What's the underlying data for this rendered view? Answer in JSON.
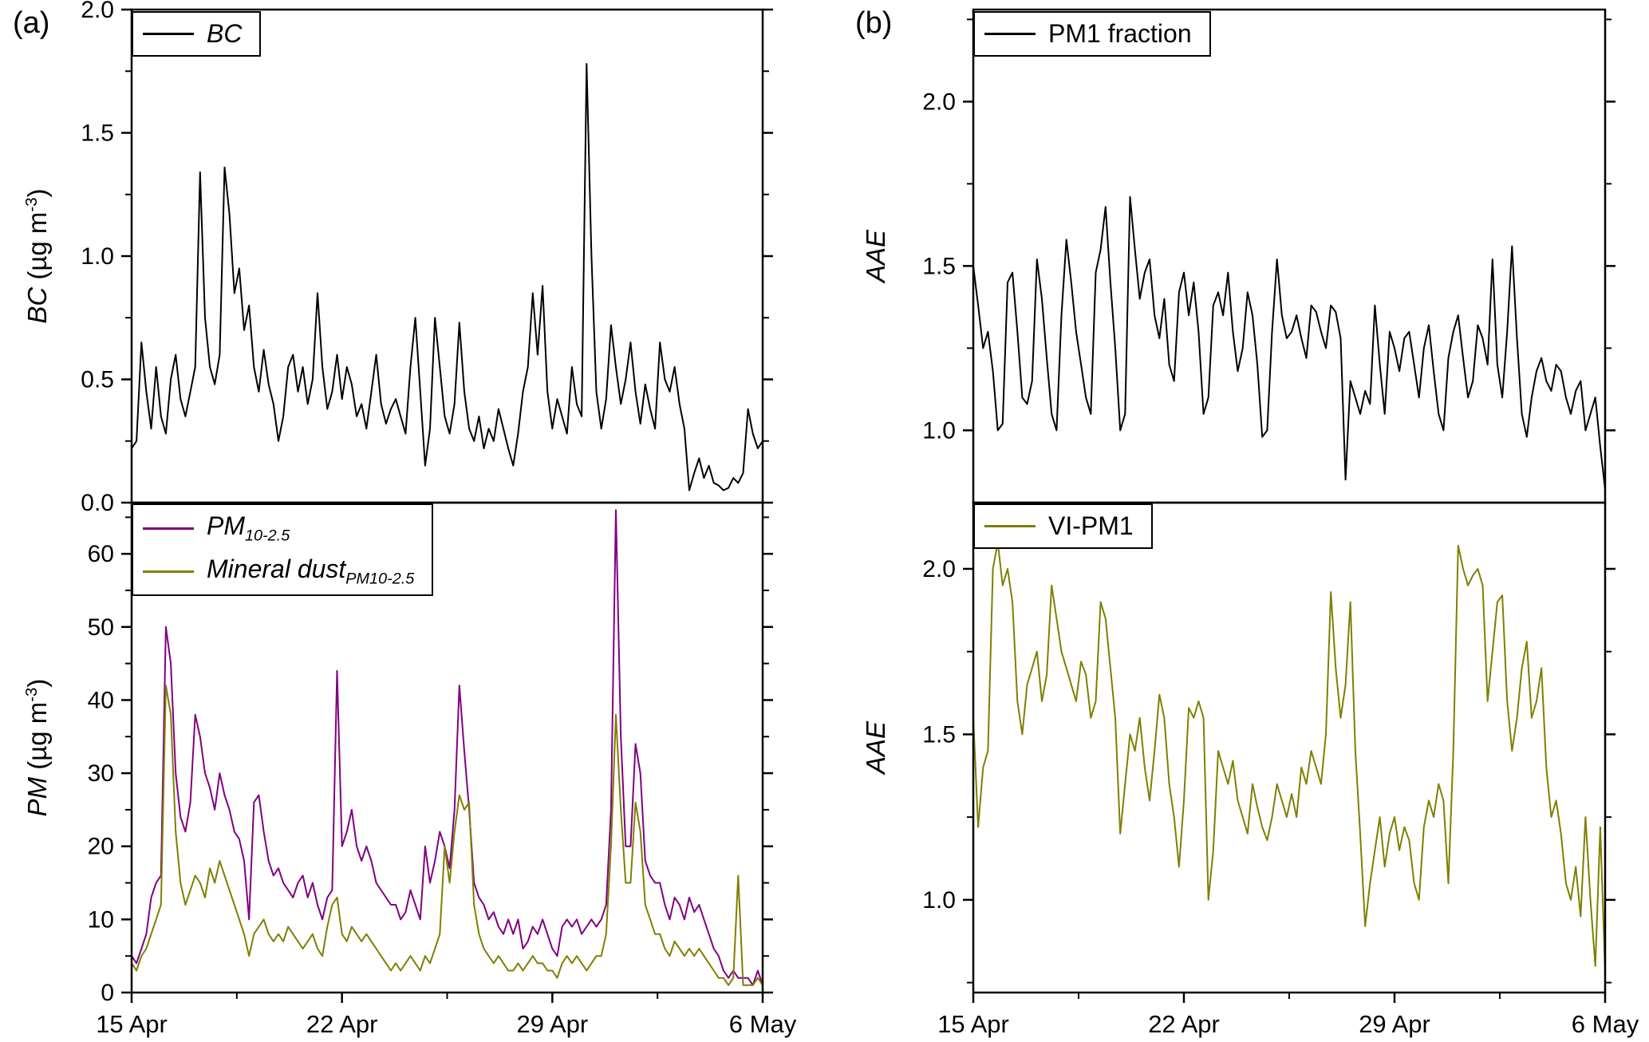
{
  "panel_labels": {
    "a": "(a)",
    "b": "(b)"
  },
  "colors": {
    "black": "#000000",
    "purple": "#800080",
    "olive": "#7f7f00"
  },
  "axis_labels": {
    "a_top": {
      "var": "BC",
      "unit_pre": " (µg m",
      "unit_sup": "-3",
      "unit_post": ")"
    },
    "a_bottom": {
      "var": "PM",
      "unit_pre": " (µg m",
      "unit_sup": "-3",
      "unit_post": ")"
    },
    "b_top": {
      "var": "AAE"
    },
    "b_bottom": {
      "var": "AAE"
    }
  },
  "legends": {
    "a_top": {
      "label": "BC"
    },
    "a_bottom": {
      "rows": [
        {
          "base": "PM",
          "sub": "10-2.5"
        },
        {
          "base": "Mineral dust",
          "sub": "PM10-2.5"
        }
      ]
    },
    "b_top": {
      "label": "PM1 fraction"
    },
    "b_bottom": {
      "label": "VI-PM1"
    }
  },
  "x_axis": {
    "range": [
      0,
      21
    ],
    "ticks": [
      0,
      7,
      14,
      21
    ],
    "tick_labels": [
      "15 Apr",
      "22 Apr",
      "29 Apr",
      "6 May"
    ],
    "minor_ticks": [
      3.5,
      10.5,
      17.5
    ]
  },
  "chart_data": [
    {
      "id": "a-top",
      "type": "line",
      "ylabel": "BC (ug m-3)",
      "ylim": [
        0,
        2.0
      ],
      "yticks": [
        0,
        0.5,
        1.0,
        1.5,
        2.0
      ],
      "ytick_labels": [
        "0.0",
        "0.5",
        "1.0",
        "1.5",
        "2.0"
      ],
      "yminor": [
        0.25,
        0.75,
        1.25,
        1.75
      ],
      "series": [
        {
          "name": "BC",
          "color": "#000000",
          "values": [
            0.22,
            0.25,
            0.65,
            0.45,
            0.3,
            0.55,
            0.35,
            0.28,
            0.5,
            0.6,
            0.42,
            0.35,
            0.45,
            0.55,
            1.34,
            0.75,
            0.55,
            0.48,
            0.6,
            1.36,
            1.17,
            0.85,
            0.95,
            0.7,
            0.8,
            0.55,
            0.45,
            0.62,
            0.48,
            0.4,
            0.25,
            0.35,
            0.55,
            0.6,
            0.45,
            0.55,
            0.4,
            0.5,
            0.85,
            0.55,
            0.38,
            0.45,
            0.6,
            0.42,
            0.55,
            0.48,
            0.35,
            0.4,
            0.3,
            0.45,
            0.6,
            0.4,
            0.32,
            0.38,
            0.42,
            0.35,
            0.28,
            0.55,
            0.75,
            0.45,
            0.15,
            0.3,
            0.75,
            0.55,
            0.35,
            0.28,
            0.4,
            0.73,
            0.45,
            0.3,
            0.25,
            0.35,
            0.22,
            0.3,
            0.25,
            0.38,
            0.3,
            0.22,
            0.15,
            0.28,
            0.45,
            0.55,
            0.85,
            0.6,
            0.88,
            0.45,
            0.3,
            0.42,
            0.35,
            0.28,
            0.55,
            0.4,
            0.35,
            1.78,
            1.0,
            0.45,
            0.3,
            0.42,
            0.72,
            0.55,
            0.4,
            0.5,
            0.65,
            0.45,
            0.32,
            0.48,
            0.38,
            0.3,
            0.65,
            0.5,
            0.45,
            0.55,
            0.4,
            0.3,
            0.05,
            0.12,
            0.18,
            0.1,
            0.15,
            0.08,
            0.07,
            0.05,
            0.06,
            0.1,
            0.08,
            0.12,
            0.38,
            0.28,
            0.22,
            0.25
          ]
        }
      ]
    },
    {
      "id": "a-bottom",
      "type": "line",
      "ylabel": "PM (ug m-3)",
      "ylim": [
        0,
        67
      ],
      "yticks": [
        0,
        10,
        20,
        30,
        40,
        50,
        60
      ],
      "ytick_labels": [
        "0",
        "10",
        "20",
        "30",
        "40",
        "50",
        "60"
      ],
      "yminor": [
        5,
        15,
        25,
        35,
        45,
        55,
        65
      ],
      "series": [
        {
          "name": "PM 10-2.5",
          "color": "#800080",
          "values": [
            5,
            4,
            6,
            8,
            13,
            15,
            16,
            50,
            45,
            30,
            24,
            22,
            26,
            38,
            35,
            30,
            28,
            25,
            30,
            27,
            25,
            22,
            21,
            18,
            10,
            26,
            27,
            22,
            18,
            16,
            17,
            15,
            14,
            13,
            15,
            16,
            13,
            15,
            12,
            10,
            13,
            14,
            44,
            20,
            22,
            25,
            20,
            18,
            20,
            18,
            15,
            14,
            13,
            12,
            12,
            10,
            11,
            14,
            12,
            10,
            20,
            15,
            18,
            22,
            20,
            17,
            25,
            42,
            33,
            25,
            15,
            13,
            12,
            10,
            11,
            9,
            8,
            10,
            8,
            10,
            6,
            7,
            9,
            8,
            10,
            8,
            6,
            5,
            9,
            10,
            9,
            10,
            8,
            9,
            10,
            9,
            10,
            12,
            25,
            66,
            35,
            20,
            20,
            34,
            30,
            18,
            16,
            15,
            15,
            12,
            10,
            13,
            12,
            10,
            13,
            11,
            12,
            10,
            8,
            6,
            5,
            3,
            2,
            3,
            2,
            2,
            2,
            1,
            3,
            1
          ]
        },
        {
          "name": "Mineral dust PM10-2.5",
          "color": "#7f7f00",
          "values": [
            4,
            3,
            5,
            6,
            8,
            10,
            12,
            42,
            38,
            22,
            15,
            12,
            14,
            16,
            15,
            13,
            17,
            15,
            18,
            16,
            14,
            12,
            10,
            8,
            5,
            8,
            9,
            10,
            8,
            7,
            8,
            7,
            9,
            8,
            7,
            6,
            7,
            8,
            6,
            5,
            9,
            12,
            13,
            8,
            7,
            9,
            8,
            7,
            8,
            7,
            6,
            5,
            4,
            3,
            4,
            3,
            4,
            5,
            4,
            3,
            5,
            4,
            6,
            8,
            20,
            15,
            22,
            27,
            25,
            26,
            12,
            8,
            6,
            5,
            4,
            5,
            4,
            3,
            3,
            4,
            3,
            4,
            5,
            4,
            4,
            3,
            3,
            2,
            4,
            5,
            4,
            5,
            4,
            3,
            4,
            5,
            5,
            8,
            20,
            38,
            25,
            15,
            15,
            26,
            22,
            12,
            10,
            8,
            8,
            6,
            5,
            7,
            6,
            5,
            6,
            5,
            6,
            5,
            4,
            3,
            2,
            2,
            1,
            2,
            16,
            1,
            1,
            1,
            2,
            1
          ]
        }
      ]
    },
    {
      "id": "b-top",
      "type": "line",
      "ylabel": "AAE",
      "ylim": [
        0.78,
        2.28
      ],
      "yticks": [
        1.0,
        1.5,
        2.0
      ],
      "ytick_labels": [
        "1.0",
        "1.5",
        "2.0"
      ],
      "yminor": [
        1.25,
        1.75,
        2.25
      ],
      "series": [
        {
          "name": "PM1 fraction",
          "color": "#000000",
          "values": [
            1.5,
            1.38,
            1.25,
            1.3,
            1.18,
            1.0,
            1.02,
            1.45,
            1.48,
            1.3,
            1.1,
            1.08,
            1.15,
            1.52,
            1.4,
            1.22,
            1.05,
            1.0,
            1.35,
            1.58,
            1.45,
            1.3,
            1.2,
            1.1,
            1.05,
            1.48,
            1.55,
            1.68,
            1.45,
            1.25,
            1.0,
            1.05,
            1.71,
            1.55,
            1.4,
            1.48,
            1.52,
            1.35,
            1.28,
            1.4,
            1.2,
            1.15,
            1.42,
            1.48,
            1.35,
            1.45,
            1.3,
            1.05,
            1.1,
            1.38,
            1.42,
            1.35,
            1.48,
            1.3,
            1.18,
            1.25,
            1.42,
            1.35,
            1.2,
            0.98,
            1.0,
            1.3,
            1.52,
            1.35,
            1.28,
            1.3,
            1.35,
            1.28,
            1.22,
            1.38,
            1.36,
            1.3,
            1.25,
            1.38,
            1.36,
            1.28,
            0.85,
            1.15,
            1.1,
            1.05,
            1.12,
            1.08,
            1.38,
            1.2,
            1.05,
            1.3,
            1.25,
            1.18,
            1.28,
            1.3,
            1.2,
            1.1,
            1.25,
            1.32,
            1.18,
            1.05,
            1.0,
            1.22,
            1.3,
            1.35,
            1.22,
            1.1,
            1.15,
            1.32,
            1.28,
            1.2,
            1.52,
            1.2,
            1.1,
            1.3,
            1.56,
            1.28,
            1.05,
            0.98,
            1.1,
            1.18,
            1.22,
            1.15,
            1.12,
            1.2,
            1.18,
            1.1,
            1.05,
            1.12,
            1.15,
            1.0,
            1.05,
            1.1,
            0.95,
            0.82
          ]
        }
      ]
    },
    {
      "id": "b-bottom",
      "type": "line",
      "ylabel": "AAE",
      "ylim": [
        0.72,
        2.2
      ],
      "yticks": [
        1.0,
        1.5,
        2.0
      ],
      "ytick_labels": [
        "1.0",
        "1.5",
        "2.0"
      ],
      "yminor": [
        0.75,
        1.25,
        1.75
      ],
      "series": [
        {
          "name": "VI-PM1",
          "color": "#7f7f00",
          "values": [
            1.55,
            1.22,
            1.4,
            1.45,
            2.0,
            2.08,
            1.95,
            2.0,
            1.9,
            1.6,
            1.5,
            1.65,
            1.7,
            1.75,
            1.6,
            1.68,
            1.95,
            1.85,
            1.75,
            1.7,
            1.65,
            1.6,
            1.72,
            1.68,
            1.55,
            1.6,
            1.9,
            1.85,
            1.7,
            1.55,
            1.2,
            1.35,
            1.5,
            1.45,
            1.55,
            1.4,
            1.3,
            1.45,
            1.62,
            1.55,
            1.35,
            1.25,
            1.1,
            1.3,
            1.58,
            1.55,
            1.6,
            1.55,
            1.0,
            1.15,
            1.45,
            1.4,
            1.35,
            1.42,
            1.3,
            1.25,
            1.2,
            1.35,
            1.28,
            1.22,
            1.18,
            1.25,
            1.35,
            1.3,
            1.25,
            1.32,
            1.25,
            1.4,
            1.35,
            1.45,
            1.4,
            1.35,
            1.5,
            1.93,
            1.7,
            1.55,
            1.65,
            1.9,
            1.45,
            1.2,
            0.92,
            1.05,
            1.15,
            1.25,
            1.1,
            1.2,
            1.25,
            1.15,
            1.22,
            1.18,
            1.05,
            1.0,
            1.22,
            1.3,
            1.25,
            1.35,
            1.3,
            1.05,
            1.45,
            2.07,
            2.0,
            1.95,
            1.98,
            2.0,
            1.95,
            1.6,
            1.75,
            1.9,
            1.92,
            1.6,
            1.45,
            1.55,
            1.7,
            1.78,
            1.55,
            1.6,
            1.7,
            1.4,
            1.25,
            1.3,
            1.2,
            1.05,
            1.0,
            1.1,
            0.95,
            1.25,
            1.0,
            0.8,
            1.22,
            0.78
          ]
        }
      ]
    }
  ]
}
